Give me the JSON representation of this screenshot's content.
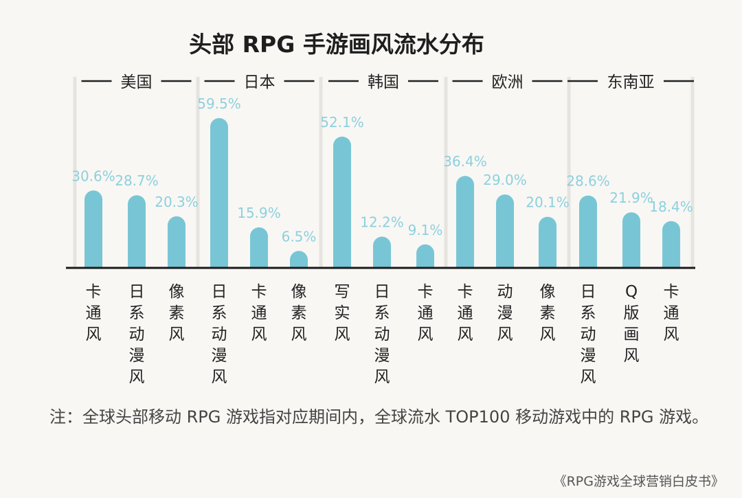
{
  "chart_data": {
    "type": "bar",
    "title": "头部 RPG 手游画风流水分布",
    "groups": [
      {
        "name": "美国",
        "categories": [
          "卡通风",
          "日系动漫风",
          "像素风"
        ],
        "values": [
          30.6,
          28.7,
          20.3
        ],
        "labels": [
          "30.6%",
          "28.7%",
          "20.3%"
        ]
      },
      {
        "name": "日本",
        "categories": [
          "日系动漫风",
          "卡通风",
          "像素风"
        ],
        "values": [
          59.5,
          15.9,
          6.5
        ],
        "labels": [
          "59.5%",
          "15.9%",
          "6.5%"
        ]
      },
      {
        "name": "韩国",
        "categories": [
          "写实风",
          "日系动漫风",
          "卡通风"
        ],
        "values": [
          52.1,
          12.2,
          9.1
        ],
        "labels": [
          "52.1%",
          "12.2%",
          "9.1%"
        ]
      },
      {
        "name": "欧洲",
        "categories": [
          "卡通风",
          "动漫风",
          "像素风"
        ],
        "values": [
          36.4,
          29.0,
          20.1
        ],
        "labels": [
          "36.4%",
          "29.0%",
          "20.1%"
        ]
      },
      {
        "name": "东南亚",
        "categories": [
          "日系动漫风",
          "Q版画风",
          "卡通风"
        ],
        "values": [
          28.6,
          21.9,
          18.4
        ],
        "labels": [
          "28.6%",
          "21.9%",
          "18.4%"
        ]
      }
    ],
    "ylim": [
      0,
      60
    ],
    "grid": false,
    "colors": {
      "bar": "#78c6d5",
      "label": "#8dd0dd",
      "baseline": "#1a1a1a",
      "divider": "#e6e4e0"
    }
  },
  "note": "注：全球头部移动 RPG 游戏指对应期间内，全球流水 TOP100 移动游戏中的 RPG 游戏。",
  "source": "《RPG游戏全球营销白皮书》"
}
